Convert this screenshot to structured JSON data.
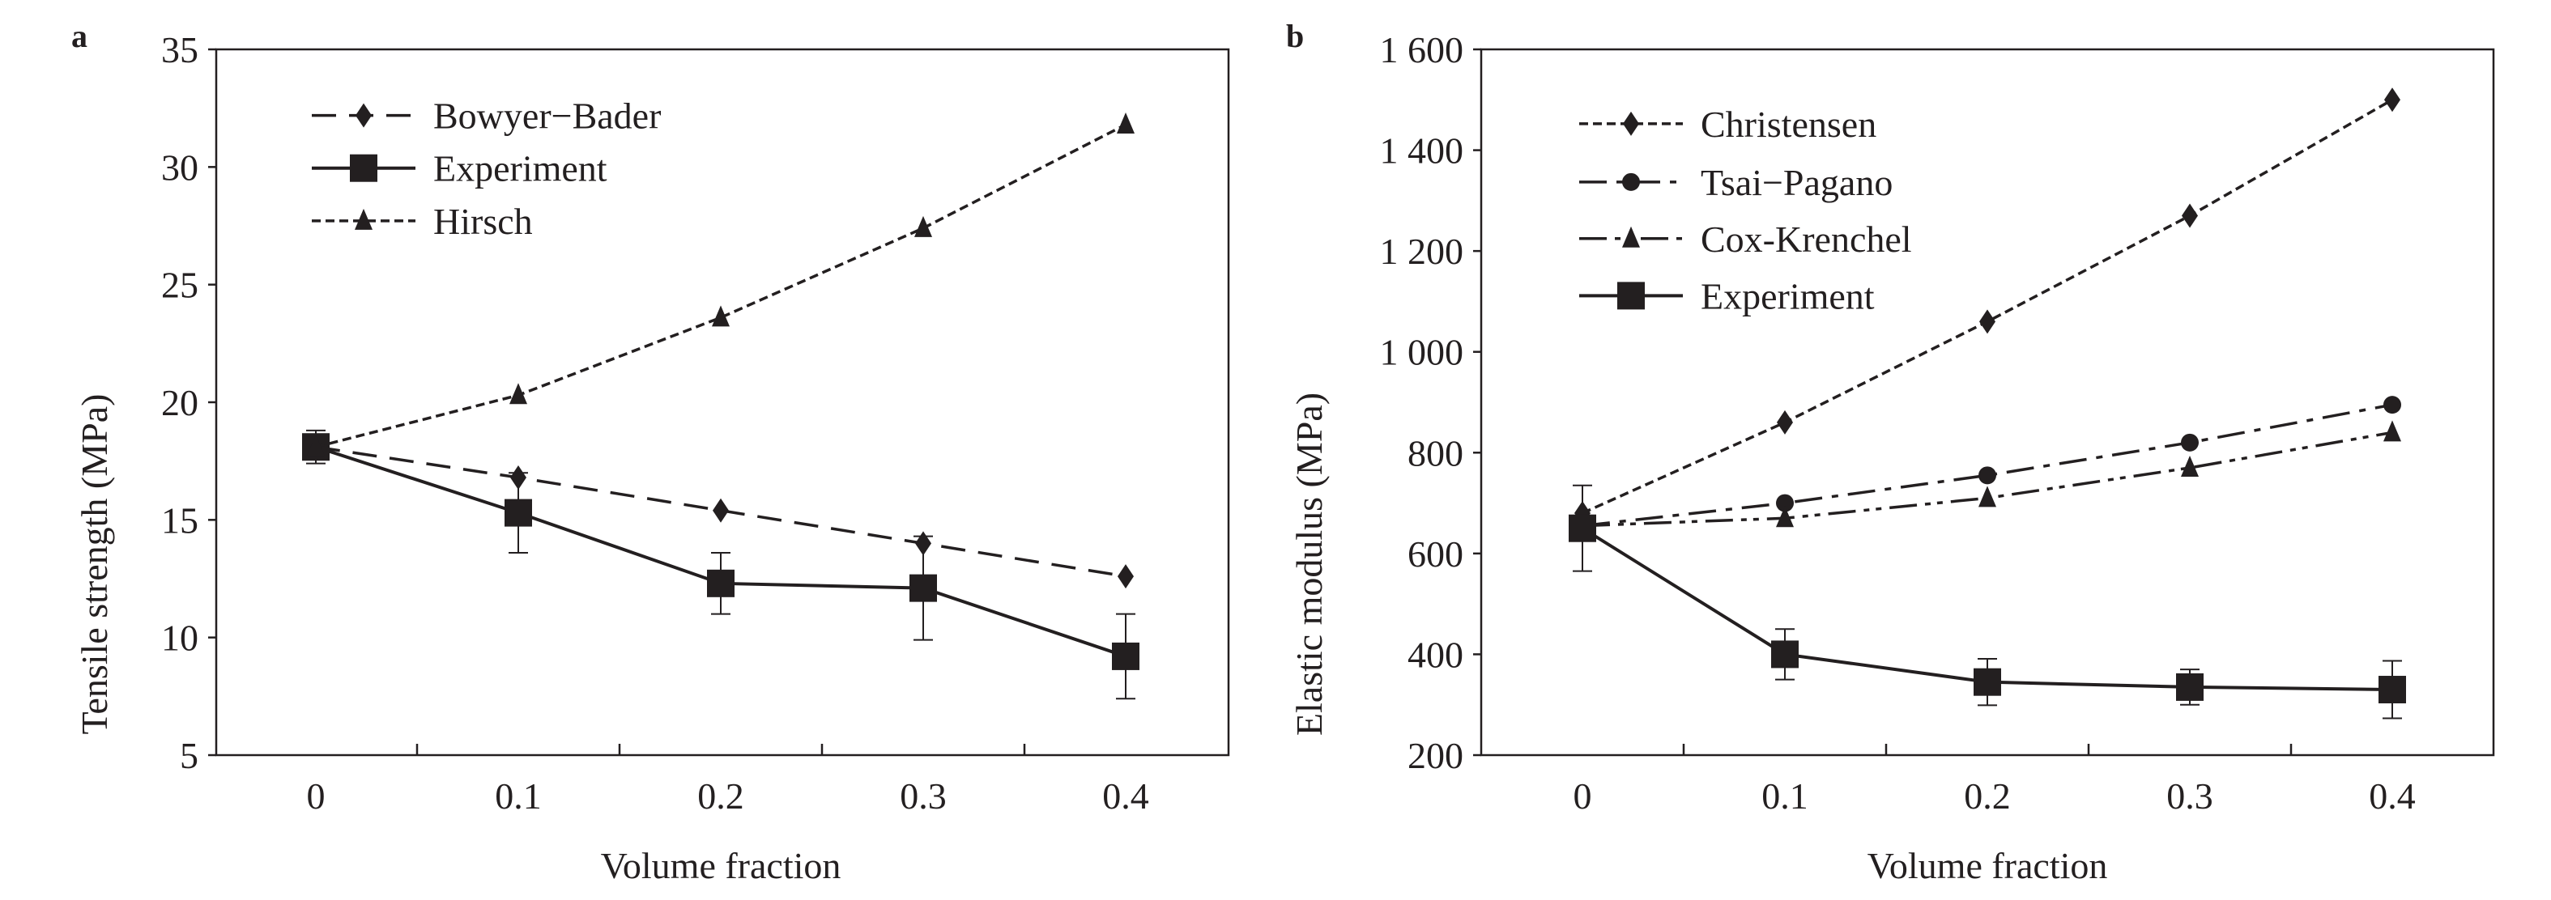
{
  "chart_data": [
    {
      "panel_label": "a",
      "type": "line",
      "xlabel": "Volume fraction",
      "ylabel": "Tensile strength (MPa)",
      "categories": [
        "0",
        "0.1",
        "0.2",
        "0.3",
        "0.4"
      ],
      "x": [
        0,
        0.1,
        0.2,
        0.3,
        0.4
      ],
      "ylim": [
        5,
        35
      ],
      "yticks": [
        "5",
        "10",
        "15",
        "20",
        "25",
        "30",
        "35"
      ],
      "yticks_values": [
        5,
        10,
        15,
        20,
        25,
        30,
        35
      ],
      "grid": false,
      "legend_position": "top-left",
      "series": [
        {
          "name": "Bowyer−Bader",
          "marker": "diamond",
          "line": "dashed",
          "values": [
            18.1,
            16.8,
            15.4,
            14.0,
            12.6
          ]
        },
        {
          "name": "Experiment",
          "marker": "square",
          "line": "solid",
          "values": [
            18.1,
            15.3,
            12.3,
            12.1,
            9.2
          ],
          "error": [
            0.7,
            1.7,
            1.3,
            2.2,
            1.8
          ]
        },
        {
          "name": "Hirsch",
          "marker": "triangle",
          "line": "dotted",
          "values": [
            18.1,
            20.3,
            23.6,
            27.4,
            31.8
          ]
        }
      ]
    },
    {
      "panel_label": "b",
      "type": "line",
      "xlabel": "Volume fraction",
      "ylabel": "Elastic modulus (MPa)",
      "categories": [
        "0",
        "0.1",
        "0.2",
        "0.3",
        "0.4"
      ],
      "x": [
        0,
        0.1,
        0.2,
        0.3,
        0.4
      ],
      "ylim": [
        200,
        1600
      ],
      "yticks": [
        "200",
        "400",
        "600",
        "800",
        "1 000",
        "1 200",
        "1 400",
        "1 600"
      ],
      "yticks_values": [
        200,
        400,
        600,
        800,
        1000,
        1200,
        1400,
        1600
      ],
      "grid": false,
      "legend_position": "top-left",
      "series": [
        {
          "name": "Christensen",
          "marker": "diamond",
          "line": "dotted",
          "values": [
            680,
            860,
            1060,
            1270,
            1500
          ]
        },
        {
          "name": "Tsai−Pagano",
          "marker": "circle",
          "line": "dash-dot",
          "values": [
            655,
            700,
            755,
            820,
            895
          ]
        },
        {
          "name": "Cox-Krenchel",
          "marker": "triangle",
          "line": "dash-dot-dot",
          "values": [
            655,
            670,
            710,
            770,
            840
          ]
        },
        {
          "name": "Experiment",
          "marker": "square",
          "line": "solid",
          "values": [
            650,
            400,
            345,
            335,
            330
          ],
          "error": [
            85,
            50,
            46,
            35,
            57
          ]
        }
      ]
    }
  ],
  "colors": {
    "ink": "#231f20",
    "background": "#ffffff"
  }
}
